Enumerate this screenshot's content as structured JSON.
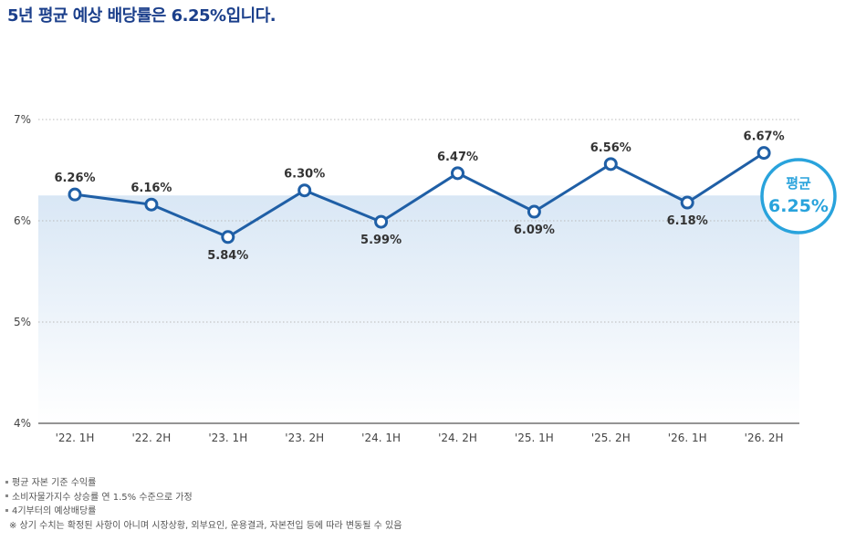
{
  "title": "5년 평균 예상 배당률은 6.25%입니다.",
  "chart_data": {
    "type": "line",
    "categories": [
      "'22. 1H",
      "'22. 2H",
      "'23. 1H",
      "'23. 2H",
      "'24. 1H",
      "'24. 2H",
      "'25. 1H",
      "'25. 2H",
      "'26. 1H",
      "'26. 2H"
    ],
    "series": [
      {
        "values": [
          6.26,
          6.16,
          5.84,
          6.3,
          5.99,
          6.47,
          6.09,
          6.56,
          6.18,
          6.67
        ]
      }
    ],
    "data_labels": [
      "6.26%",
      "6.16%",
      "5.84%",
      "6.30%",
      "5.99%",
      "6.47%",
      "6.09%",
      "6.56%",
      "6.18%",
      "6.67%"
    ],
    "y_ticks": [
      4,
      5,
      6,
      7
    ],
    "y_tick_labels": [
      "4%",
      "5%",
      "6%",
      "7%"
    ],
    "ylim": [
      4,
      7
    ],
    "average": 6.25,
    "average_badge": {
      "label": "평균",
      "value": "6.25%"
    },
    "grid": "horizontal dotted",
    "colors": {
      "line": "#1f5fa6",
      "badge": "#29a3dc",
      "band": "#dbe8f5"
    }
  },
  "footnotes": {
    "items": [
      "평균 자본 기준 수익률",
      "소비자물가지수 상승률 연 1.5% 수준으로 가정",
      "4기부터의 예상배당률"
    ],
    "note": "※ 상기 수치는 확정된 사항이 아니며 시장상황, 외부요인, 운용결과, 자본전입 등에 따라 변동될 수 있음"
  }
}
